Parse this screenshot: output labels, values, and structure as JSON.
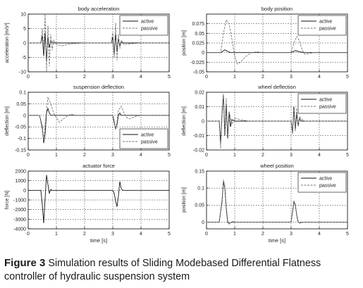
{
  "chart_data": [
    {
      "type": "line",
      "title": "body acceleration",
      "xlabel": "",
      "ylabel": "acceleration [m/s²]",
      "xlim": [
        0,
        5
      ],
      "ylim": [
        -10,
        10
      ],
      "xticks": [
        0,
        1,
        2,
        3,
        4,
        5
      ],
      "yticks": [
        -10,
        -5,
        0,
        5,
        10
      ],
      "ytick_labels": [
        "-10",
        "-5",
        "0",
        "5",
        "10"
      ],
      "grid": true,
      "legend": "top-right",
      "series": [
        {
          "name": "active",
          "dash": "solid",
          "color": "#111111",
          "x": [
            0,
            0.45,
            0.5,
            0.55,
            0.6,
            0.65,
            0.7,
            0.75,
            0.8,
            0.9,
            1.0,
            1.5,
            2.0,
            2.95,
            3.0,
            3.05,
            3.1,
            3.15,
            3.2,
            3.25,
            3.3,
            3.4,
            3.5,
            4.0,
            5.0
          ],
          "y": [
            0,
            0,
            2.5,
            -4.5,
            3.5,
            -6,
            2,
            -1.5,
            0.5,
            0,
            0,
            0,
            0,
            0,
            2,
            -4,
            3,
            -3,
            1.5,
            -1,
            0.3,
            0,
            0,
            0,
            0
          ]
        },
        {
          "name": "passive",
          "dash": "dashed",
          "color": "#777777",
          "x": [
            0,
            0.45,
            0.5,
            0.55,
            0.6,
            0.65,
            0.7,
            0.75,
            0.8,
            0.85,
            0.9,
            1.0,
            1.2,
            1.5,
            2.0,
            2.95,
            3.0,
            3.05,
            3.1,
            3.15,
            3.2,
            3.25,
            3.3,
            3.4,
            3.6,
            4.0,
            5.0
          ],
          "y": [
            0,
            0,
            5,
            -3,
            10,
            -10,
            6,
            -8,
            3,
            -2.5,
            1,
            -0.5,
            -1,
            -0.3,
            0,
            0,
            4,
            -5,
            7,
            -6,
            3,
            -2,
            1,
            -0.6,
            -0.3,
            0,
            0
          ]
        }
      ]
    },
    {
      "type": "line",
      "title": "body position",
      "xlabel": "",
      "ylabel": "position [m]",
      "xlim": [
        0,
        5
      ],
      "ylim": [
        -0.05,
        0.1
      ],
      "xticks": [
        0,
        1,
        2,
        3,
        4,
        5
      ],
      "yticks": [
        -0.05,
        -0.025,
        0,
        0.025,
        0.05,
        0.075
      ],
      "ytick_labels": [
        "-0.05",
        "-0.025",
        "0",
        "0.025",
        "0.05",
        "0.075"
      ],
      "grid": true,
      "legend": "top-right",
      "series": [
        {
          "name": "active",
          "dash": "solid",
          "color": "#111111",
          "x": [
            0,
            0.5,
            0.65,
            0.75,
            0.85,
            1.0,
            1.5,
            2.0,
            3.0,
            3.15,
            3.3,
            3.45,
            3.6,
            4.0,
            5.0
          ],
          "y": [
            0,
            0,
            0.007,
            0.003,
            0,
            0,
            0,
            0,
            0,
            0.005,
            0.002,
            0,
            0,
            0,
            0
          ]
        },
        {
          "name": "passive",
          "dash": "dashed",
          "color": "#777777",
          "x": [
            0,
            0.5,
            0.6,
            0.7,
            0.8,
            0.9,
            1.0,
            1.1,
            1.2,
            1.4,
            1.6,
            1.8,
            2.0,
            2.5,
            3.0,
            3.1,
            3.2,
            3.3,
            3.4,
            3.5,
            3.6,
            3.8,
            4.0,
            4.5,
            5.0
          ],
          "y": [
            0,
            0,
            0.05,
            0.085,
            0.075,
            0.035,
            -0.01,
            -0.03,
            -0.025,
            -0.01,
            0,
            0.002,
            0,
            0,
            0,
            0.025,
            0.042,
            0.03,
            0.005,
            -0.005,
            -0.003,
            0,
            0,
            0,
            0
          ]
        }
      ]
    },
    {
      "type": "line",
      "title": "suspension deflection",
      "xlabel": "",
      "ylabel": "deflection [m]",
      "xlim": [
        0,
        5
      ],
      "ylim": [
        -0.15,
        0.1
      ],
      "xticks": [
        0,
        1,
        2,
        3,
        4,
        5
      ],
      "yticks": [
        -0.15,
        -0.1,
        -0.05,
        0,
        0.05,
        0.1
      ],
      "ytick_labels": [
        "-0.15",
        "-0.1",
        "-0.05",
        "0",
        "0.05",
        "0.1"
      ],
      "grid": true,
      "legend": "bottom-right",
      "series": [
        {
          "name": "active",
          "dash": "solid",
          "color": "#111111",
          "x": [
            0,
            0.4,
            0.5,
            0.55,
            0.6,
            0.65,
            0.7,
            0.75,
            0.8,
            0.9,
            1.0,
            2.0,
            3.0,
            3.05,
            3.1,
            3.15,
            3.2,
            3.25,
            3.3,
            3.4,
            3.5,
            4.0,
            5.0
          ],
          "y": [
            0,
            0,
            -0.05,
            -0.12,
            -0.08,
            0.01,
            0.03,
            0.01,
            0,
            0,
            0,
            0,
            0,
            -0.03,
            -0.06,
            -0.04,
            0,
            0.01,
            0,
            0,
            0,
            0,
            0
          ]
        },
        {
          "name": "passive",
          "dash": "dashed",
          "color": "#777777",
          "x": [
            0,
            0.4,
            0.5,
            0.55,
            0.6,
            0.7,
            0.8,
            0.9,
            1.0,
            1.1,
            1.3,
            1.5,
            1.7,
            2.0,
            2.5,
            3.0,
            3.05,
            3.1,
            3.15,
            3.2,
            3.3,
            3.4,
            3.5,
            3.6,
            3.8,
            4.0,
            5.0
          ],
          "y": [
            0,
            0,
            -0.06,
            -0.11,
            -0.04,
            0.08,
            0.05,
            0.01,
            -0.01,
            -0.03,
            -0.01,
            0.005,
            0,
            0,
            0,
            0,
            -0.02,
            -0.06,
            -0.03,
            0.02,
            0.04,
            0.01,
            -0.01,
            -0.015,
            -0.005,
            0,
            0
          ]
        }
      ]
    },
    {
      "type": "line",
      "title": "wheel deflection",
      "xlabel": "",
      "ylabel": "deflection [m]",
      "xlim": [
        0,
        5
      ],
      "ylim": [
        -0.02,
        0.02
      ],
      "xticks": [
        0,
        1,
        2,
        3,
        4,
        5
      ],
      "yticks": [
        -0.02,
        -0.01,
        0,
        0.01,
        0.02
      ],
      "ytick_labels": [
        "-0.02",
        "-0.01",
        "0",
        "0.01",
        "0.02"
      ],
      "grid": true,
      "legend": "top-right",
      "series": [
        {
          "name": "active",
          "dash": "solid",
          "color": "#111111",
          "x": [
            0,
            0.45,
            0.5,
            0.55,
            0.6,
            0.65,
            0.7,
            0.75,
            0.8,
            0.85,
            0.9,
            1.0,
            1.5,
            2.0,
            3.0,
            3.05,
            3.1,
            3.15,
            3.2,
            3.25,
            3.3,
            3.35,
            3.4,
            3.5,
            4.0,
            5.0
          ],
          "y": [
            0,
            0,
            -0.015,
            0.005,
            0.018,
            -0.01,
            0.012,
            -0.012,
            0.006,
            -0.004,
            0.001,
            0,
            0,
            0,
            0,
            -0.008,
            0.01,
            -0.006,
            0.005,
            -0.003,
            0.002,
            0,
            0,
            0,
            0,
            0
          ]
        },
        {
          "name": "passive",
          "dash": "dashed",
          "color": "#777777",
          "x": [
            0,
            0.45,
            0.5,
            0.55,
            0.6,
            0.65,
            0.7,
            0.75,
            0.8,
            0.9,
            1.0,
            1.2,
            1.5,
            2.0,
            3.0,
            3.05,
            3.1,
            3.15,
            3.2,
            3.25,
            3.3,
            3.4,
            3.5,
            4.0,
            5.0
          ],
          "y": [
            0,
            0,
            -0.019,
            0.007,
            0.019,
            -0.008,
            0.016,
            -0.01,
            0.007,
            -0.002,
            0.002,
            0.001,
            0,
            0,
            0,
            -0.009,
            0.008,
            -0.007,
            0.009,
            -0.004,
            0.003,
            0.001,
            0,
            0,
            0
          ]
        }
      ]
    },
    {
      "type": "line",
      "title": "actuator force",
      "xlabel": "time [s]",
      "ylabel": "force [N]",
      "xlim": [
        0,
        5
      ],
      "ylim": [
        -4000,
        2000
      ],
      "xticks": [
        0,
        1,
        2,
        3,
        4,
        5
      ],
      "yticks": [
        -4000,
        -3000,
        -2000,
        -1000,
        0,
        1000,
        2000
      ],
      "ytick_labels": [
        "-4000",
        "-3000",
        "-2000",
        "-1000",
        "0",
        "1000",
        "2000"
      ],
      "grid": true,
      "legend": "none",
      "series": [
        {
          "name": "",
          "dash": "solid",
          "color": "#111111",
          "x": [
            0,
            0.45,
            0.5,
            0.55,
            0.6,
            0.65,
            0.7,
            0.75,
            0.8,
            0.85,
            0.9,
            1.0,
            2.0,
            3.0,
            3.05,
            3.1,
            3.15,
            3.2,
            3.25,
            3.3,
            3.35,
            3.4,
            4.0,
            5.0
          ],
          "y": [
            0,
            0,
            -1500,
            -3400,
            -800,
            1600,
            600,
            -300,
            100,
            0,
            0,
            0,
            0,
            0,
            -300,
            -1100,
            -1700,
            -600,
            900,
            200,
            0,
            0,
            0,
            0
          ]
        }
      ]
    },
    {
      "type": "line",
      "title": "wheel position",
      "xlabel": "time [s]",
      "ylabel": "position [m]",
      "xlim": [
        0,
        5
      ],
      "ylim": [
        -0.02,
        0.15
      ],
      "xticks": [
        0,
        1,
        2,
        3,
        4,
        5
      ],
      "yticks": [
        0,
        0.05,
        0.1,
        0.15
      ],
      "ytick_labels": [
        "0",
        "0.05",
        "0.1",
        "0.15"
      ],
      "grid": true,
      "legend": "top-right",
      "series": [
        {
          "name": "active",
          "dash": "solid",
          "color": "#111111",
          "x": [
            0,
            0.45,
            0.55,
            0.6,
            0.65,
            0.7,
            0.75,
            0.8,
            0.9,
            1.0,
            2.0,
            3.0,
            3.05,
            3.1,
            3.15,
            3.2,
            3.25,
            3.3,
            3.4,
            3.5,
            4.0,
            5.0
          ],
          "y": [
            0,
            0,
            0.06,
            0.12,
            0.1,
            0.04,
            0,
            -0.005,
            0,
            0,
            0,
            0,
            0.03,
            0.06,
            0.05,
            0.02,
            0,
            -0.003,
            0,
            0,
            0,
            0
          ]
        },
        {
          "name": "passive",
          "dash": "dashed",
          "color": "#777777",
          "x": [
            0,
            0.45,
            0.55,
            0.6,
            0.65,
            0.7,
            0.75,
            0.8,
            0.9,
            1.0,
            2.0,
            3.0,
            3.05,
            3.1,
            3.15,
            3.2,
            3.25,
            3.3,
            3.4,
            3.5,
            4.0,
            5.0
          ],
          "y": [
            0,
            0,
            0.065,
            0.125,
            0.105,
            0.045,
            0.005,
            -0.006,
            0.002,
            0,
            0,
            0,
            0.032,
            0.063,
            0.052,
            0.022,
            0.002,
            -0.004,
            0,
            0,
            0,
            0
          ]
        }
      ]
    }
  ],
  "caption": {
    "label": "Figure 3",
    "text": "Simulation results of Sliding Modebased Differential Flatness controller of hydraulic suspension system"
  }
}
